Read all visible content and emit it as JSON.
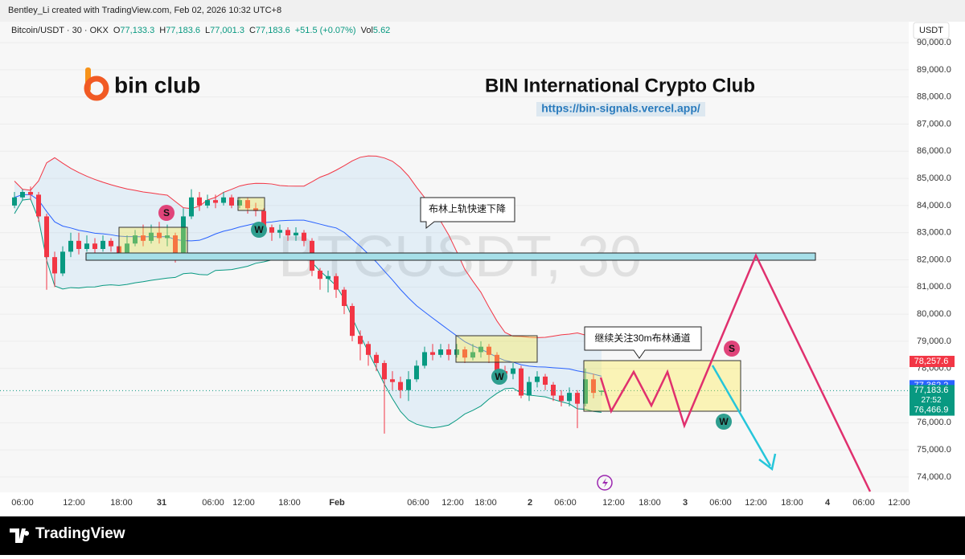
{
  "header": {
    "credit": "Bentley_Li created with TradingView.com, Feb 02, 2026 10:32 UTC+8",
    "symbol": "Bitcoin/USDT · 30 · OKX",
    "o_label": "O",
    "open": "77,133.3",
    "h_label": "H",
    "high": "77,183.6",
    "l_label": "L",
    "low": "77,001.3",
    "c_label": "C",
    "close": "77,183.6",
    "change": "+51.5 (+0.07%)",
    "vol_label": "Vol",
    "volume": "5.62",
    "currency": "USDT"
  },
  "branding": {
    "logo": "bin club",
    "title": "BIN International Crypto Club",
    "url": "https://bin-signals.vercel.app/",
    "watermark": "BTCUSDT, 30",
    "footer": "TradingView"
  },
  "annotations": {
    "callout_1": "布林上轨快速下降",
    "callout_2": "继续关注30m布林通道",
    "markers": [
      "S",
      "W",
      "W",
      "S",
      "W"
    ]
  },
  "chart_data": {
    "type": "candlestick",
    "up_color": "#089981",
    "down_color": "#f23645",
    "series": {
      "open": [
        84000,
        84300,
        84500,
        84400,
        83600,
        82100,
        81500,
        82300,
        82700,
        82400,
        82600,
        82400,
        82700,
        82500,
        82200,
        82600,
        82900,
        82700,
        83000,
        82800,
        82900,
        82200,
        83600,
        84300,
        84000,
        84200,
        84100,
        84300,
        84000,
        84200,
        83900,
        83800,
        83200,
        83000,
        83100,
        82900,
        83000,
        82700,
        81600,
        81300,
        81400,
        80900,
        80300,
        79200,
        78900,
        78500,
        78200,
        77600,
        77500,
        77200,
        77600,
        78100,
        78600,
        78500,
        78700,
        78500,
        78700,
        78400,
        78600,
        78800,
        78500,
        77900,
        77800,
        78000,
        77000,
        77500,
        77700,
        77400,
        77000,
        76800,
        77100,
        76700,
        77600,
        77133.3
      ],
      "high": [
        84500,
        84600,
        84700,
        84500,
        83700,
        82300,
        82500,
        83000,
        83000,
        82900,
        82800,
        82900,
        82800,
        82600,
        82900,
        83100,
        83300,
        83300,
        83400,
        83300,
        83000,
        83900,
        84600,
        84500,
        84400,
        84400,
        84500,
        84400,
        84300,
        84300,
        84100,
        83900,
        83300,
        83300,
        83200,
        83200,
        83100,
        82800,
        81700,
        81600,
        81500,
        81000,
        80400,
        79400,
        79000,
        78600,
        78300,
        77900,
        77700,
        77900,
        78300,
        78800,
        78900,
        78900,
        78900,
        78900,
        78800,
        78900,
        79000,
        78900,
        78600,
        78100,
        78200,
        78100,
        77700,
        77900,
        77800,
        77500,
        77200,
        77300,
        77200,
        78000,
        77800,
        77183.6
      ],
      "low": [
        83900,
        84200,
        84200,
        83400,
        80900,
        81000,
        81400,
        82100,
        82200,
        82300,
        82200,
        82300,
        82300,
        82000,
        82100,
        82500,
        82500,
        82600,
        82600,
        82500,
        81900,
        82100,
        83500,
        83800,
        83900,
        83900,
        84000,
        83900,
        83900,
        83700,
        83600,
        83000,
        82700,
        82800,
        82700,
        82700,
        82500,
        81400,
        80900,
        80800,
        80600,
        80000,
        79000,
        78300,
        78100,
        77900,
        75600,
        77200,
        76900,
        76800,
        77500,
        78000,
        78300,
        78400,
        78300,
        78400,
        78200,
        78300,
        78400,
        78200,
        77700,
        77500,
        77600,
        76900,
        76800,
        77300,
        77200,
        76800,
        76600,
        76600,
        75800,
        76600,
        76900,
        77001.3
      ],
      "close": [
        84300,
        84500,
        84400,
        83600,
        82100,
        81500,
        82300,
        82700,
        82400,
        82600,
        82400,
        82700,
        82500,
        82200,
        82600,
        82900,
        82700,
        83000,
        82800,
        82900,
        82200,
        83600,
        84300,
        84000,
        84200,
        84100,
        84300,
        84000,
        84200,
        83900,
        83800,
        83200,
        83000,
        83100,
        82900,
        83000,
        82700,
        81600,
        81300,
        81400,
        80900,
        80300,
        79200,
        78900,
        78500,
        78200,
        77600,
        77500,
        77200,
        77600,
        78100,
        78600,
        78500,
        78700,
        78500,
        78700,
        78400,
        78600,
        78800,
        78500,
        77900,
        77800,
        78000,
        77000,
        77500,
        77700,
        77400,
        77000,
        76800,
        77100,
        76700,
        77600,
        77100,
        77183.6
      ]
    },
    "ylim": [
      73436,
      90772
    ],
    "yticks": [
      {
        "value": 74000,
        "label": "74,000.0"
      },
      {
        "value": 75000,
        "label": "75,000.0"
      },
      {
        "value": 76000,
        "label": "76,000.0"
      },
      {
        "value": 77000,
        "label": "77,000.0"
      },
      {
        "value": 78000,
        "label": "78,000.0"
      },
      {
        "value": 79000,
        "label": "79,000.0"
      },
      {
        "value": 80000,
        "label": "80,000.0"
      },
      {
        "value": 81000,
        "label": "81,000.0"
      },
      {
        "value": 82000,
        "label": "82,000.0"
      },
      {
        "value": 83000,
        "label": "83,000.0"
      },
      {
        "value": 84000,
        "label": "84,000.0"
      },
      {
        "value": 85000,
        "label": "85,000.0"
      },
      {
        "value": 86000,
        "label": "86,000.0"
      },
      {
        "value": 87000,
        "label": "87,000.0"
      },
      {
        "value": 88000,
        "label": "88,000.0"
      },
      {
        "value": 89000,
        "label": "89,000.0"
      },
      {
        "value": 90000,
        "label": "90,000.0"
      }
    ],
    "x_labels": [
      "06:00",
      "12:00",
      "18:00",
      "31",
      "06:00",
      "12:00",
      "18:00",
      "Feb",
      "06:00",
      "12:00",
      "18:00",
      "2",
      "06:00",
      "12:00",
      "18:00",
      "3",
      "06:00",
      "12:00",
      "18:00",
      "4",
      "06:00",
      "12:00"
    ],
    "price_labels": [
      {
        "value": 78257.6,
        "label": "78,257.6",
        "color": "#f23645"
      },
      {
        "value": 77362.2,
        "label": "77,362.2",
        "color": "#2962ff"
      },
      {
        "value": 77183.6,
        "label": "77,183.6",
        "color": "#089981"
      },
      {
        "value": 76466.9,
        "label": "76,466.9",
        "color": "#089981"
      }
    ],
    "countdown": "27:52"
  }
}
